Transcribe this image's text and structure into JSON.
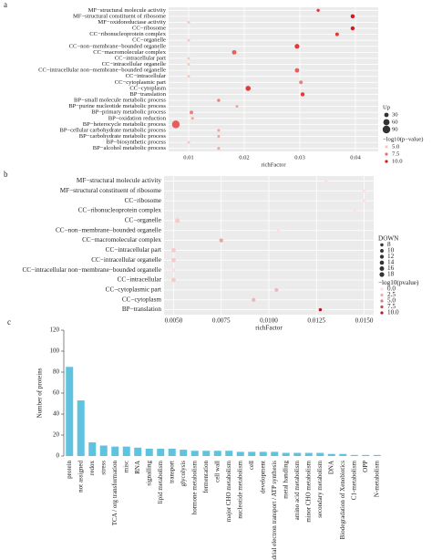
{
  "chart_data": [
    {
      "type": "bubble",
      "label": "a",
      "x_label": "richFactor",
      "categories": [
        "MF−structural molecule activity",
        "MF−structural constituent of ribosome",
        "MF−oxidoreductase activity",
        "CC−ribosome",
        "CC−ribonucleoprotein complex",
        "CC−organelle",
        "CC−non−membrane−bounded organelle",
        "CC−macromolecular complex",
        "CC−intracellular part",
        "CC−intracellular organelle",
        "CC−intracellular non−membrane−bounded organelle",
        "CC−intracellular",
        "CC−cytoplasmic part",
        "CC−cytoplasm",
        "BP−translation",
        "BP−small molecule metabolic process",
        "BP−purine nucleotide metabolic process",
        "BP−primary metabolic process",
        "BP−oxidation reduction",
        "BP−heterocycle metabolic process",
        "BP−cellular carbohydrate metabolic process",
        "BP−carbohydrate metabolic process",
        "BP−biosynthetic process",
        "BP−alcohol metabolic process"
      ],
      "values": [
        0.0333,
        0.0395,
        0.01,
        0.0395,
        0.0367,
        0.01,
        0.0295,
        0.0182,
        0.01,
        0.01,
        0.0295,
        0.01,
        0.0302,
        0.0207,
        0.0305,
        0.0154,
        0.0187,
        0.0105,
        0.0107,
        0.0077,
        0.0154,
        0.0154,
        0.01,
        0.0154
      ],
      "sizes": [
        15,
        25,
        10,
        25,
        20,
        10,
        35,
        30,
        10,
        10,
        30,
        10,
        20,
        40,
        25,
        15,
        12,
        20,
        12,
        90,
        12,
        12,
        10,
        12
      ],
      "color_values": [
        9,
        10,
        5,
        10,
        9,
        5,
        9,
        8,
        5,
        5,
        8,
        5,
        7,
        9,
        9,
        7,
        6,
        7,
        6,
        8,
        6,
        6,
        5,
        6
      ],
      "xlim": [
        0.0064,
        0.0441
      ],
      "xticks": [
        0.01,
        0.02,
        0.03,
        0.04
      ],
      "grid": true,
      "color_low": "#fcc5b8",
      "color_high": "#d7191c",
      "size_legend": {
        "title": "Up",
        "values": [
          30,
          60,
          90
        ]
      },
      "color_legend": {
        "title": "−log10(p−value)",
        "values": [
          {
            "value": 5,
            "label": "5.0"
          },
          {
            "value": 7.5,
            "label": "7.5"
          },
          {
            "value": 10,
            "label": "10.0"
          }
        ]
      }
    },
    {
      "type": "bubble",
      "label": "b",
      "x_label": "richFactor",
      "categories": [
        "MF−structural molecule activity",
        "MF−structural constituent of ribosome",
        "CC−ribosome",
        "CC−ribonucleoprotein complex",
        "CC−organelle",
        "CC−non−membrane−bounded organelle",
        "CC−macromolecular complex",
        "CC−intracellular part",
        "CC−intracellular organelle",
        "CC−intracellular non−membrane−bounded organelle",
        "CC−intracellular",
        "CC−cytoplasmic part",
        "CC−cytoplasm",
        "BP−translation"
      ],
      "values": [
        0.013,
        0.015,
        0.015,
        0.0145,
        0.0052,
        0.0105,
        0.0075,
        0.005,
        0.005,
        0.005,
        0.005,
        0.0104,
        0.0092,
        0.0127
      ],
      "sizes": [
        8,
        8,
        8,
        8,
        18,
        10,
        12,
        16,
        16,
        10,
        16,
        12,
        12,
        8
      ],
      "color_values": [
        0,
        0,
        0,
        0,
        1,
        0,
        3,
        1,
        1,
        0,
        1,
        2,
        2,
        10
      ],
      "xlim": [
        0.0045,
        0.0155
      ],
      "xticks": [
        {
          "value": 0.005,
          "label": "0.0050"
        },
        {
          "value": 0.0075,
          "label": "0.0075"
        },
        {
          "value": 0.01,
          "label": "0.0100"
        },
        {
          "value": 0.0125,
          "label": "0.0125"
        },
        {
          "value": 0.015,
          "label": "0.0150"
        }
      ],
      "grid": true,
      "color_low": "#fde0dd",
      "color_high": "#b2182b",
      "size_legend": {
        "title": "DOWN",
        "values": [
          8,
          10,
          12,
          14,
          16,
          18
        ]
      },
      "color_legend": {
        "title": "−log10(pvalue)",
        "values": [
          {
            "value": 0,
            "label": "0.0"
          },
          {
            "value": 2.5,
            "label": "2.5"
          },
          {
            "value": 5,
            "label": "5.0"
          },
          {
            "value": 7.5,
            "label": "7.5"
          },
          {
            "value": 10,
            "label": "10.0"
          }
        ]
      }
    },
    {
      "type": "bar",
      "label": "c",
      "y_label": "Number of proteins",
      "categories": [
        "protein",
        "not assigned",
        "redox",
        "stress",
        "TCA / org transformation",
        "misc",
        "RNA",
        "signalling",
        "lipid metabolism",
        "transport",
        "glycolysis",
        "hormone metabolism",
        "fermentation",
        "cell wall",
        "major CHO metabolism",
        "nucleotide metabolism",
        "cell",
        "development",
        "mitochondrial electron transport / ATP synthesis",
        "metal handling",
        "amino acid metabolism",
        "minor CHO metabolism",
        "secondary metabolism",
        "DNA",
        "Biodegradation of Xenobiotics",
        "C1-metabolism",
        "OPP",
        "N-metabolism"
      ],
      "values": [
        85,
        53,
        13,
        10,
        9,
        9,
        8,
        7,
        7,
        7,
        6,
        5,
        5,
        5,
        5,
        4,
        4,
        4,
        4,
        3,
        3,
        3,
        3,
        2,
        2,
        1,
        1,
        1
      ],
      "color": "#5fc3df",
      "ylim": [
        0,
        120
      ],
      "yticks": [
        0,
        20,
        40,
        60,
        80,
        100,
        120
      ]
    }
  ]
}
